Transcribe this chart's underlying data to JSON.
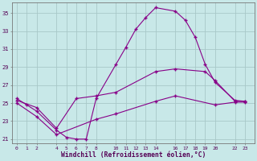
{
  "background_color": "#c8e8e8",
  "grid_color": "#a8c8c8",
  "line_color": "#880088",
  "ylim": [
    20.5,
    36.2
  ],
  "yticks": [
    21,
    23,
    25,
    27,
    29,
    31,
    33,
    35
  ],
  "xtick_vals": [
    0,
    1,
    2,
    4,
    5,
    6,
    7,
    8,
    10,
    11,
    12,
    13,
    14,
    16,
    17,
    18,
    19,
    20,
    22,
    23
  ],
  "xlim": [
    -0.5,
    24
  ],
  "curve1_x": [
    0,
    1,
    2,
    4,
    5,
    6,
    7,
    8,
    10,
    11,
    12,
    13,
    14,
    16,
    17,
    18,
    19,
    20,
    22,
    23
  ],
  "curve1_y": [
    25.5,
    24.8,
    24.1,
    22.0,
    21.2,
    21.0,
    21.0,
    25.5,
    29.3,
    31.2,
    33.2,
    34.5,
    35.6,
    35.2,
    34.2,
    32.3,
    29.3,
    27.3,
    25.3,
    25.2
  ],
  "curve2_x": [
    0,
    2,
    4,
    6,
    8,
    10,
    14,
    16,
    19,
    20,
    22,
    23
  ],
  "curve2_y": [
    25.3,
    24.5,
    22.2,
    25.5,
    25.8,
    26.2,
    28.5,
    28.8,
    28.5,
    27.5,
    25.2,
    25.2
  ],
  "curve3_x": [
    0,
    2,
    4,
    8,
    10,
    14,
    16,
    20,
    22,
    23
  ],
  "curve3_y": [
    25.0,
    23.5,
    21.5,
    23.2,
    23.8,
    25.2,
    25.8,
    24.8,
    25.1,
    25.1
  ],
  "xlabel": "Windchill (Refroidissement éolien,°C)"
}
